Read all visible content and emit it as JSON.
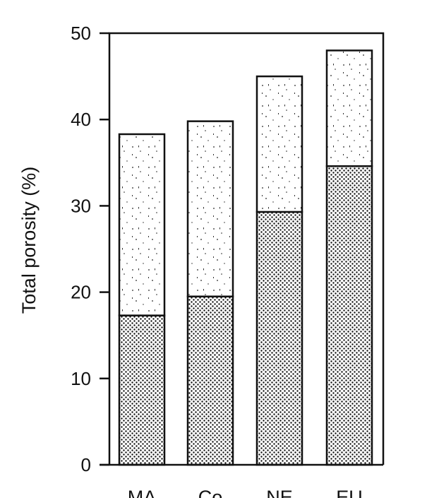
{
  "chart_data": {
    "type": "bar",
    "stacked": true,
    "categories": [
      "MA",
      "Co",
      "NE",
      "EU"
    ],
    "series": [
      {
        "values": [
          17.3,
          19.5,
          29.3,
          34.6
        ],
        "pattern": "dense-dot"
      },
      {
        "values": [
          21.0,
          20.3,
          15.7,
          13.4
        ],
        "pattern": "sparse-speckle"
      }
    ],
    "totals": [
      38.3,
      39.8,
      45.0,
      48.0
    ],
    "title": "",
    "xlabel": "",
    "ylabel": "Total porosity (%)",
    "ylim": [
      0,
      50
    ],
    "yticks": [
      0,
      10,
      20,
      30,
      40,
      50
    ],
    "grid": false,
    "colors": {
      "ink": "#111111",
      "background": "#ffffff"
    }
  }
}
